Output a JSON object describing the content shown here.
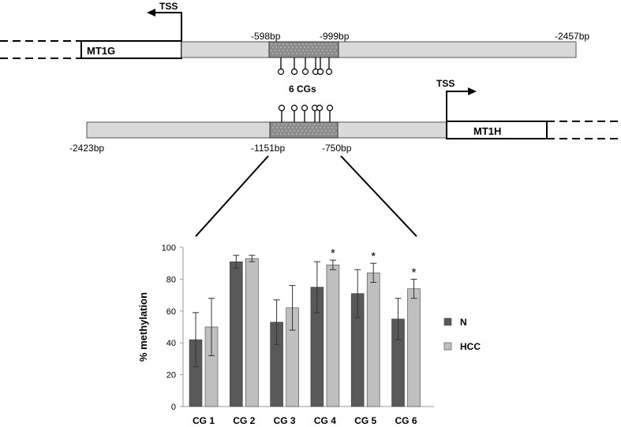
{
  "top_gene": {
    "tss_label": "TSS",
    "gene_label": "MT1G",
    "pos_left": "-598bp",
    "pos_right": "-999bp",
    "pos_end": "-2457bp"
  },
  "cg_group_label": "6 CGs",
  "bottom_gene": {
    "tss_label": "TSS",
    "gene_label": "MT1H",
    "pos_start": "-2423bp",
    "pos_left": "-1151bp",
    "pos_right": "-750bp"
  },
  "chart_data": {
    "type": "bar",
    "title": "",
    "xlabel": "",
    "ylabel": "% methylation",
    "ylim": [
      0,
      100
    ],
    "yticks": [
      0,
      20,
      40,
      60,
      80,
      100
    ],
    "categories": [
      "CG 1",
      "CG 2",
      "CG 3",
      "CG 4",
      "CG 5",
      "CG 6"
    ],
    "series": [
      {
        "name": "N",
        "color": "#595959",
        "values": [
          42,
          91,
          53,
          75,
          71,
          55
        ],
        "errors": [
          17,
          4,
          14,
          16,
          15,
          13
        ]
      },
      {
        "name": "HCC",
        "color": "#bfbfbf",
        "values": [
          50,
          93,
          62,
          89,
          84,
          74
        ],
        "errors": [
          18,
          2,
          14,
          3,
          6,
          6
        ]
      }
    ],
    "significance": [
      "",
      "",
      "",
      "*",
      "*",
      "*"
    ],
    "legend_position": "right",
    "grid": false
  }
}
